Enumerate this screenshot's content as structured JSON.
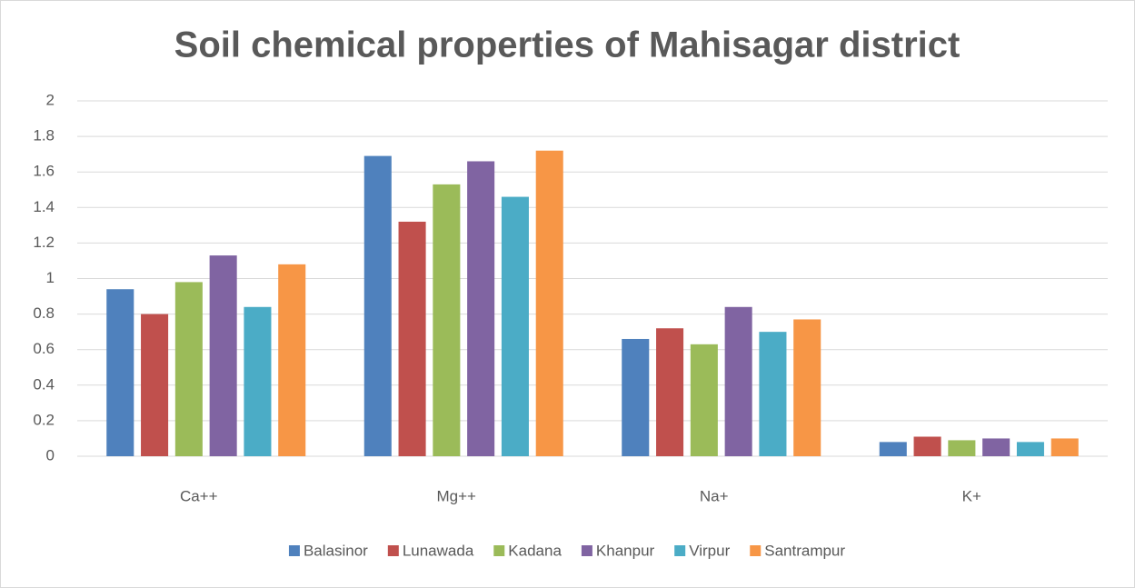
{
  "chart_data": {
    "type": "bar",
    "title": "Soil chemical properties of Mahisagar district",
    "categories": [
      "Ca++",
      "Mg++",
      "Na+",
      "K+"
    ],
    "series": [
      {
        "name": "Balasinor",
        "color": "#4f81bd",
        "values": [
          0.94,
          1.69,
          0.66,
          0.08
        ]
      },
      {
        "name": "Lunawada",
        "color": "#c0504d",
        "values": [
          0.8,
          1.32,
          0.72,
          0.11
        ]
      },
      {
        "name": "Kadana",
        "color": "#9bbb59",
        "values": [
          0.98,
          1.53,
          0.63,
          0.09
        ]
      },
      {
        "name": "Khanpur",
        "color": "#8064a2",
        "values": [
          1.13,
          1.66,
          0.84,
          0.1
        ]
      },
      {
        "name": "Virpur",
        "color": "#4bacc6",
        "values": [
          0.84,
          1.46,
          0.7,
          0.08
        ]
      },
      {
        "name": "Santrampur",
        "color": "#f79646",
        "values": [
          1.08,
          1.72,
          0.77,
          0.1
        ]
      }
    ],
    "ylim": [
      0,
      2
    ],
    "yticks": [
      0,
      0.2,
      0.4,
      0.6,
      0.8,
      1,
      1.2,
      1.4,
      1.6,
      1.8,
      2
    ],
    "grid": true,
    "legend": "bottom"
  }
}
